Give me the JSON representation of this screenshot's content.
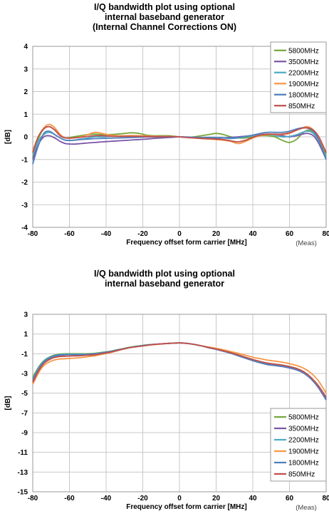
{
  "chart_data": [
    {
      "type": "line",
      "title_lines": [
        "I/Q bandwidth plot using optional",
        "internal baseband generator",
        "(Internal Channel Corrections ON)"
      ],
      "xlabel": "Frequency offset form carrier [MHz]",
      "ylabel": "[dB]",
      "note": "(Meas)",
      "xlim": [
        -80,
        80
      ],
      "ylim": [
        -4,
        4
      ],
      "x_ticks": [
        "-80",
        "-60",
        "-40",
        "-20",
        "0",
        "20",
        "40",
        "60",
        "80"
      ],
      "y_ticks": [
        "4",
        "3",
        "2",
        "1",
        "0",
        "-1",
        "-2",
        "-3",
        "-4"
      ],
      "grid": true,
      "legend_position": "top-right",
      "x": [
        -80,
        -77,
        -74,
        -71,
        -68,
        -65,
        -62,
        -58,
        -54,
        -50,
        -46,
        -42,
        -38,
        -34,
        -30,
        -26,
        -22,
        -18,
        -14,
        -10,
        -6,
        -2,
        0,
        4,
        8,
        12,
        16,
        20,
        24,
        28,
        32,
        36,
        40,
        44,
        48,
        52,
        56,
        60,
        64,
        67,
        70,
        73,
        76,
        80
      ],
      "series": [
        {
          "name": "5800MHz",
          "color": "#76a83a",
          "values": [
            -0.9,
            -0.1,
            0.35,
            0.45,
            0.3,
            0.05,
            -0.05,
            0,
            0.05,
            0.1,
            0.12,
            0.1,
            0.1,
            0.12,
            0.15,
            0.18,
            0.15,
            0.08,
            0.05,
            0.05,
            0.05,
            0.02,
            0,
            -0.02,
            0,
            0.05,
            0.1,
            0.15,
            0.1,
            0,
            -0.05,
            -0.05,
            0,
            0.05,
            0.05,
            0,
            -0.15,
            -0.25,
            -0.1,
            0.15,
            0.3,
            0.2,
            -0.1,
            -0.8
          ]
        },
        {
          "name": "3500MHz",
          "color": "#7b55a8",
          "values": [
            -1.0,
            -0.35,
            0,
            0.05,
            -0.05,
            -0.2,
            -0.3,
            -0.32,
            -0.3,
            -0.27,
            -0.25,
            -0.22,
            -0.2,
            -0.18,
            -0.16,
            -0.14,
            -0.12,
            -0.1,
            -0.07,
            -0.05,
            -0.03,
            -0.01,
            0,
            -0.01,
            -0.02,
            -0.03,
            -0.05,
            -0.07,
            -0.05,
            -0.02,
            0,
            0.03,
            0.06,
            0.09,
            0.12,
            0.1,
            0.05,
            0.0,
            0.05,
            0.12,
            0.15,
            0.05,
            -0.3,
            -1.0
          ]
        },
        {
          "name": "2200MHz",
          "color": "#4bacc6",
          "values": [
            -0.8,
            -0.2,
            0.1,
            0.2,
            0.1,
            -0.05,
            -0.15,
            -0.15,
            -0.1,
            -0.05,
            0,
            0,
            0.02,
            0.03,
            0.03,
            0.02,
            0.01,
            0,
            0,
            0,
            0,
            0,
            0,
            -0.02,
            -0.03,
            -0.03,
            -0.02,
            -0.03,
            -0.05,
            -0.08,
            -0.05,
            0,
            0.05,
            0.1,
            0.1,
            0.05,
            0,
            0.02,
            0.1,
            0.2,
            0.25,
            0.15,
            -0.2,
            -0.9
          ]
        },
        {
          "name": "1900MHz",
          "color": "#f79646",
          "values": [
            -0.6,
            0,
            0.4,
            0.55,
            0.4,
            0.1,
            -0.05,
            -0.05,
            0,
            0.1,
            0.2,
            0.15,
            0.08,
            0.05,
            0.05,
            0.06,
            0.05,
            0.04,
            0.03,
            0.02,
            0.02,
            0.01,
            0,
            -0.02,
            -0.05,
            -0.08,
            -0.1,
            -0.12,
            -0.15,
            -0.2,
            -0.3,
            -0.2,
            -0.05,
            0.05,
            0.1,
            0.1,
            0.1,
            0.15,
            0.3,
            0.4,
            0.45,
            0.3,
            -0.05,
            -0.7
          ]
        },
        {
          "name": "1800MHz",
          "color": "#4f81bd",
          "values": [
            -1.2,
            -0.4,
            0.15,
            0.25,
            0.1,
            -0.05,
            -0.15,
            -0.15,
            -0.12,
            -0.1,
            -0.08,
            -0.07,
            -0.06,
            -0.05,
            -0.04,
            -0.03,
            -0.02,
            -0.01,
            0,
            0,
            0,
            0,
            0,
            -0.01,
            -0.02,
            -0.03,
            -0.03,
            -0.03,
            -0.04,
            -0.05,
            -0.03,
            0.02,
            0.08,
            0.15,
            0.2,
            0.2,
            0.2,
            0.25,
            0.35,
            0.4,
            0.38,
            0.25,
            -0.15,
            -1.0
          ]
        },
        {
          "name": "850MHz",
          "color": "#c0504d",
          "values": [
            -0.7,
            0,
            0.35,
            0.45,
            0.3,
            0.05,
            -0.05,
            -0.05,
            -0.02,
            0.02,
            0.05,
            0.05,
            0.03,
            0.02,
            0.02,
            0.02,
            0.02,
            0.01,
            0.01,
            0.01,
            0.01,
            0.01,
            0,
            -0.03,
            -0.05,
            -0.07,
            -0.08,
            -0.1,
            -0.12,
            -0.18,
            -0.22,
            -0.15,
            -0.02,
            0.08,
            0.12,
            0.12,
            0.12,
            0.18,
            0.3,
            0.38,
            0.4,
            0.3,
            0,
            -0.7
          ]
        }
      ]
    },
    {
      "type": "line",
      "title_lines": [
        "I/Q bandwidth plot using optional",
        "internal baseband generator"
      ],
      "xlabel": "Frequency offset form carrier [MHz]",
      "ylabel": "[dB]",
      "note": "(Meas)",
      "xlim": [
        -80,
        80
      ],
      "ylim": [
        -15,
        3
      ],
      "x_ticks": [
        "-80",
        "-60",
        "-40",
        "-20",
        "0",
        "20",
        "40",
        "60",
        "80"
      ],
      "y_ticks": [
        "3",
        "1",
        "-1",
        "-3",
        "-5",
        "-7",
        "-9",
        "-11",
        "-13",
        "-15"
      ],
      "grid": true,
      "legend_position": "center-right",
      "x": [
        -80,
        -77,
        -74,
        -70,
        -66,
        -62,
        -58,
        -54,
        -50,
        -46,
        -42,
        -38,
        -34,
        -30,
        -26,
        -22,
        -18,
        -14,
        -10,
        -6,
        -2,
        0,
        4,
        8,
        12,
        16,
        20,
        24,
        28,
        32,
        36,
        40,
        44,
        48,
        52,
        56,
        60,
        64,
        68,
        72,
        76,
        80
      ],
      "series": [
        {
          "name": "5800MHz",
          "color": "#76a83a",
          "values": [
            -3.4,
            -2.4,
            -1.7,
            -1.25,
            -1.05,
            -1.0,
            -1.0,
            -1.0,
            -1.0,
            -0.95,
            -0.85,
            -0.75,
            -0.6,
            -0.45,
            -0.3,
            -0.2,
            -0.1,
            -0.05,
            0,
            0.05,
            0.1,
            0.1,
            0.05,
            -0.05,
            -0.2,
            -0.35,
            -0.5,
            -0.7,
            -0.9,
            -1.1,
            -1.35,
            -1.6,
            -1.8,
            -1.95,
            -2.05,
            -2.15,
            -2.3,
            -2.5,
            -2.9,
            -3.5,
            -4.3,
            -5.5
          ]
        },
        {
          "name": "3500MHz",
          "color": "#7b55a8",
          "values": [
            -3.8,
            -2.7,
            -1.9,
            -1.4,
            -1.2,
            -1.1,
            -1.1,
            -1.1,
            -1.1,
            -1.05,
            -0.95,
            -0.8,
            -0.65,
            -0.5,
            -0.35,
            -0.25,
            -0.15,
            -0.05,
            0,
            0.05,
            0.08,
            0.1,
            0.05,
            -0.05,
            -0.2,
            -0.4,
            -0.55,
            -0.75,
            -0.95,
            -1.2,
            -1.45,
            -1.7,
            -1.9,
            -2.1,
            -2.2,
            -2.3,
            -2.45,
            -2.65,
            -3.0,
            -3.6,
            -4.5,
            -5.7
          ]
        },
        {
          "name": "2200MHz",
          "color": "#4bacc6",
          "values": [
            -3.6,
            -2.5,
            -1.75,
            -1.3,
            -1.1,
            -1.05,
            -1.05,
            -1.05,
            -1.05,
            -1.0,
            -0.9,
            -0.78,
            -0.62,
            -0.48,
            -0.33,
            -0.22,
            -0.12,
            -0.05,
            0,
            0.05,
            0.08,
            0.1,
            0.05,
            -0.05,
            -0.2,
            -0.38,
            -0.55,
            -0.72,
            -0.92,
            -1.15,
            -1.4,
            -1.65,
            -1.85,
            -2.02,
            -2.12,
            -2.22,
            -2.38,
            -2.6,
            -2.95,
            -3.55,
            -4.4,
            -5.6
          ]
        },
        {
          "name": "1900MHz",
          "color": "#f79646",
          "values": [
            -4.1,
            -3.0,
            -2.2,
            -1.75,
            -1.55,
            -1.5,
            -1.45,
            -1.4,
            -1.3,
            -1.2,
            -1.05,
            -0.9,
            -0.7,
            -0.5,
            -0.35,
            -0.25,
            -0.15,
            -0.08,
            -0.02,
            0.05,
            0.1,
            0.1,
            0.05,
            -0.05,
            -0.2,
            -0.32,
            -0.45,
            -0.6,
            -0.78,
            -0.95,
            -1.15,
            -1.35,
            -1.5,
            -1.65,
            -1.75,
            -1.85,
            -2.0,
            -2.2,
            -2.5,
            -3.0,
            -3.8,
            -5.0
          ]
        },
        {
          "name": "1800MHz",
          "color": "#4f81bd",
          "values": [
            -3.6,
            -2.6,
            -1.85,
            -1.35,
            -1.15,
            -1.1,
            -1.1,
            -1.1,
            -1.05,
            -1.0,
            -0.9,
            -0.78,
            -0.62,
            -0.48,
            -0.33,
            -0.22,
            -0.12,
            -0.05,
            0,
            0.05,
            0.08,
            0.1,
            0.05,
            -0.05,
            -0.2,
            -0.38,
            -0.55,
            -0.75,
            -0.95,
            -1.2,
            -1.45,
            -1.7,
            -1.92,
            -2.08,
            -2.18,
            -2.28,
            -2.42,
            -2.62,
            -2.98,
            -3.6,
            -4.45,
            -5.6
          ]
        },
        {
          "name": "850MHz",
          "color": "#c0504d",
          "values": [
            -3.9,
            -2.8,
            -2.0,
            -1.5,
            -1.3,
            -1.25,
            -1.22,
            -1.2,
            -1.15,
            -1.1,
            -0.98,
            -0.85,
            -0.68,
            -0.5,
            -0.35,
            -0.25,
            -0.15,
            -0.06,
            0,
            0.05,
            0.08,
            0.1,
            0.05,
            -0.05,
            -0.2,
            -0.37,
            -0.52,
            -0.7,
            -0.9,
            -1.12,
            -1.35,
            -1.58,
            -1.78,
            -1.95,
            -2.05,
            -2.15,
            -2.3,
            -2.5,
            -2.85,
            -3.45,
            -4.3,
            -5.4
          ]
        }
      ]
    }
  ]
}
